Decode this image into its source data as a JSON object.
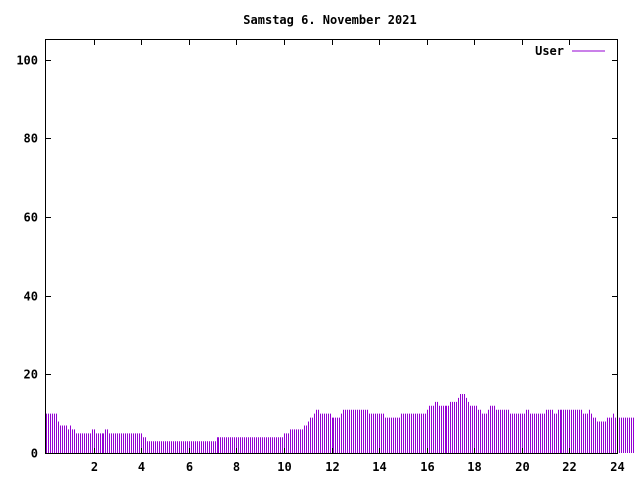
{
  "chart_data": {
    "type": "bar",
    "title": "Samstag 6. November 2021",
    "xlabel": "",
    "ylabel": "",
    "xlim": [
      0,
      24
    ],
    "ylim": [
      0,
      105
    ],
    "grid": false,
    "legend_position": "top-right",
    "x_ticks": [
      2,
      4,
      6,
      8,
      10,
      12,
      14,
      16,
      18,
      20,
      22,
      24
    ],
    "x_tick_labels": [
      "2",
      "4",
      "6",
      "8",
      "10",
      "12",
      "14",
      "16",
      "18",
      "20",
      "22",
      "24"
    ],
    "y_ticks": [
      0,
      20,
      40,
      60,
      80,
      100
    ],
    "y_tick_labels": [
      "0",
      "20",
      "40",
      "60",
      "80",
      "100"
    ],
    "series": [
      {
        "name": "User",
        "color": "#9400d3",
        "interval_minutes": 5,
        "values": [
          10,
          10,
          10,
          10,
          10,
          10,
          8,
          7,
          7,
          7,
          7,
          6,
          7,
          6,
          6,
          5,
          5,
          5,
          5,
          5,
          5,
          5,
          5,
          6,
          6,
          5,
          5,
          5,
          5,
          5,
          6,
          6,
          5,
          5,
          5,
          5,
          5,
          5,
          5,
          5,
          5,
          5,
          5,
          5,
          5,
          5,
          5,
          5,
          5,
          4,
          4,
          3,
          3,
          3,
          3,
          3,
          3,
          3,
          3,
          3,
          3,
          3,
          3,
          3,
          3,
          3,
          3,
          3,
          3,
          3,
          3,
          3,
          3,
          3,
          3,
          3,
          3,
          3,
          3,
          3,
          3,
          3,
          3,
          3,
          3,
          3,
          4,
          4,
          4,
          4,
          4,
          4,
          4,
          4,
          4,
          4,
          4,
          4,
          4,
          4,
          4,
          4,
          4,
          4,
          4,
          4,
          4,
          4,
          4,
          4,
          4,
          4,
          4,
          4,
          4,
          4,
          4,
          4,
          4,
          4,
          5,
          5,
          5,
          6,
          6,
          6,
          6,
          6,
          6,
          6,
          7,
          7,
          8,
          9,
          9,
          10,
          11,
          11,
          10,
          10,
          10,
          10,
          10,
          10,
          9,
          9,
          9,
          9,
          9,
          10,
          11,
          11,
          11,
          11,
          11,
          11,
          11,
          11,
          11,
          11,
          11,
          11,
          11,
          10,
          10,
          10,
          10,
          10,
          10,
          10,
          10,
          9,
          9,
          9,
          9,
          9,
          9,
          9,
          9,
          10,
          10,
          10,
          10,
          10,
          10,
          10,
          10,
          10,
          10,
          10,
          10,
          10,
          11,
          12,
          12,
          12,
          13,
          13,
          12,
          12,
          12,
          12,
          12,
          12,
          13,
          13,
          13,
          13,
          14,
          15,
          15,
          15,
          14,
          13,
          12,
          12,
          12,
          12,
          11,
          11,
          10,
          10,
          10,
          11,
          12,
          12,
          12,
          11,
          11,
          11,
          11,
          11,
          11,
          11,
          10,
          10,
          10,
          10,
          10,
          10,
          10,
          10,
          11,
          11,
          10,
          10,
          10,
          10,
          10,
          10,
          10,
          10,
          11,
          11,
          11,
          11,
          10,
          10,
          11,
          11,
          11,
          11,
          11,
          11,
          11,
          11,
          11,
          11,
          11,
          11,
          11,
          10,
          10,
          10,
          11,
          10,
          9,
          9,
          8,
          8,
          8,
          8,
          8,
          9,
          9,
          9,
          10,
          9,
          9,
          9,
          9,
          9,
          9,
          9,
          9,
          9,
          9
        ]
      }
    ]
  }
}
